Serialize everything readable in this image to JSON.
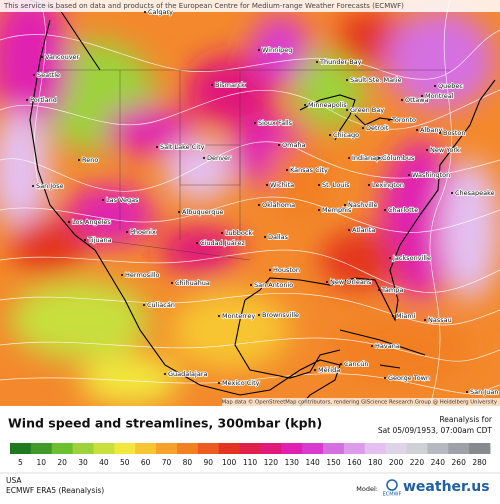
{
  "header": {
    "notice": "This service is based on data and products of the European Centre for Medium-range Weather Forecasts (ECMWF)"
  },
  "map": {
    "cities": [
      "Vancouver",
      "Seattle",
      "Portland",
      "Calgary",
      "Winnipeg",
      "Thunder Bay",
      "Sault Ste. Marie",
      "Quebec",
      "Ottawa",
      "Montreal",
      "Bismarck",
      "Minneapolis",
      "Green Bay",
      "Toronto",
      "Albany",
      "Boston",
      "Detroit",
      "Chicago",
      "Sioux Falls",
      "Salt Lake City",
      "Reno",
      "San Jose",
      "Denver",
      "Omaha",
      "Kansas City",
      "Indianapolis",
      "Columbus",
      "New York",
      "Washington",
      "Wichita",
      "St. Louis",
      "Lexington",
      "Las Vegas",
      "Los Angeles",
      "Tijuana",
      "Phoenix",
      "Albuquerque",
      "Oklahoma",
      "Memphis",
      "Nashville",
      "Charlotte",
      "Chesapeake",
      "Lubbock",
      "Ciudad Juárez",
      "Dallas",
      "Atlanta",
      "Jacksonville",
      "Houston",
      "San Antonio",
      "New Orleans",
      "Hermosillo",
      "Chihuahua",
      "Tampa",
      "Miami",
      "Nassau",
      "Monterrey",
      "Brownsville",
      "Culiacán",
      "Havana",
      "Guadalajara",
      "Mexico City",
      "Mérida",
      "Cancún",
      "George Town",
      "San Juan"
    ],
    "attribution": "Map data © OpenStreetMap contributors, rendering GIScience Research Group @ Heidelberg University"
  },
  "legend": {
    "title": "Wind speed and streamlines, 300mbar (kph)",
    "reanalysis_label": "Reanalysis for",
    "datetime": "Sat 05/09/1953, 07:00am CDT",
    "colorbar": {
      "ticks": [
        5,
        10,
        20,
        30,
        40,
        50,
        60,
        70,
        80,
        90,
        100,
        110,
        120,
        130,
        140,
        150,
        160,
        180,
        200,
        220,
        240,
        260,
        280
      ],
      "colors": [
        "#1f7a1f",
        "#3f9a2a",
        "#6cbf2e",
        "#9ed23a",
        "#c8df3c",
        "#f2e83c",
        "#f7c531",
        "#f5a12a",
        "#f27f22",
        "#ec5a1f",
        "#e3341f",
        "#e0204a",
        "#e0197a",
        "#e020b0",
        "#d93ad0",
        "#d56fe0",
        "#dc9cea",
        "#e4c0f0",
        "#ddd4e8",
        "#cfcfd6",
        "#b8b8c0",
        "#a0a0a8",
        "#88888f"
      ]
    }
  },
  "footer": {
    "region": "USA",
    "model_run": "ECMWF ERA5 (Reanalysis)",
    "model_label": "Model:",
    "model_name": "ECMWF",
    "brand": "weather.us"
  }
}
